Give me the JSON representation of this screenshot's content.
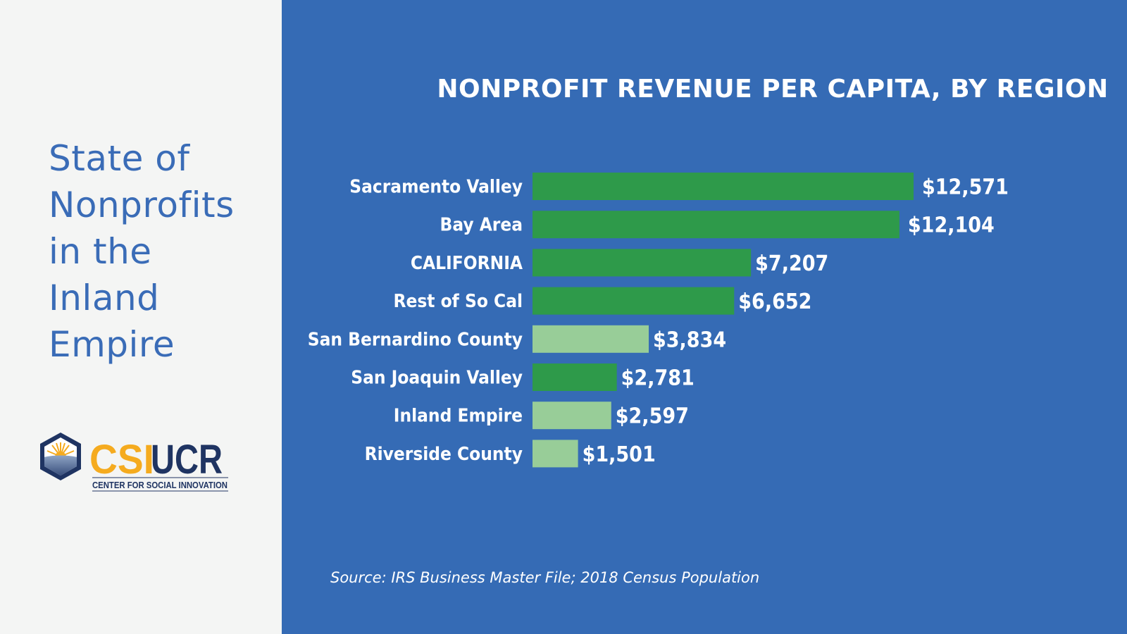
{
  "sidebar": {
    "title_lines": [
      "State of",
      "Nonprofits",
      "in the",
      "Inland",
      "Empire"
    ],
    "logo": {
      "text_csi": "CSI",
      "text_ucr": "UCR",
      "tagline": "CENTER FOR SOCIAL INNOVATION"
    }
  },
  "colors": {
    "background": "#356bb5",
    "highlight_green": "#2e9a4a",
    "light_green": "#98cd98",
    "logo_navy": "#1f3462",
    "logo_gold": "#f5ab1f"
  },
  "chart_data": {
    "type": "bar",
    "orientation": "horizontal",
    "title": "NONPROFIT REVENUE PER CAPITA, BY REGION",
    "categories": [
      "Sacramento Valley",
      "Bay Area",
      "CALIFORNIA",
      "Rest of So Cal",
      "San Bernardino County",
      "San Joaquin Valley",
      "Inland Empire",
      "Riverside County"
    ],
    "values": [
      12571,
      12104,
      7207,
      6652,
      3834,
      2781,
      2597,
      1501
    ],
    "labels": [
      "$12,571",
      "$12,104",
      "$7,207",
      "$6,652",
      "$3,834",
      "$2,781",
      "$2,597",
      "$1,501"
    ],
    "bar_colors": [
      "#2e9a4a",
      "#2e9a4a",
      "#2e9a4a",
      "#2e9a4a",
      "#98cd98",
      "#2e9a4a",
      "#98cd98",
      "#98cd98"
    ],
    "xlim": [
      0,
      12571
    ],
    "grid": false,
    "legend": "none",
    "source": "Source: IRS Business Master File; 2018 Census Population"
  }
}
